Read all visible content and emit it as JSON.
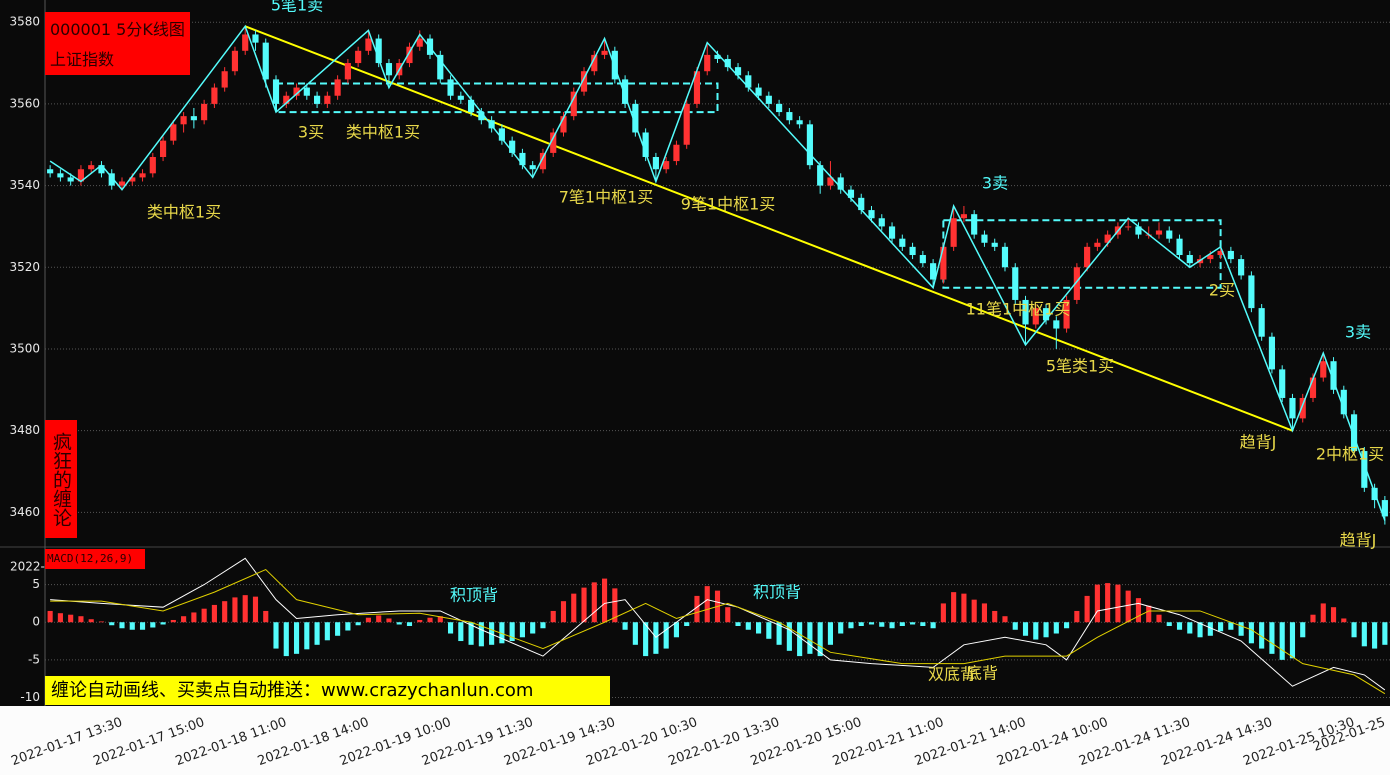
{
  "chart_data": [
    {
      "type": "candlestick",
      "title": "000001 5分K线图",
      "subtitle": "上证指数",
      "side_label": "疯狂的缠论",
      "categories": [
        null,
        null,
        null,
        null,
        null,
        null,
        null,
        "2022-01-17 13:30",
        null,
        null,
        null,
        null,
        null,
        null,
        null,
        "2022-01-17 15:00",
        null,
        null,
        null,
        null,
        null,
        null,
        null,
        "2022-01-18 11:00",
        null,
        null,
        null,
        null,
        null,
        null,
        null,
        "2022-01-18 14:00",
        null,
        null,
        null,
        null,
        null,
        null,
        null,
        "2022-01-19 10:00",
        null,
        null,
        null,
        null,
        null,
        null,
        null,
        "2022-01-19 11:30",
        null,
        null,
        null,
        null,
        null,
        null,
        null,
        "2022-01-19 14:30",
        null,
        null,
        null,
        null,
        null,
        null,
        null,
        "2022-01-20 10:30",
        null,
        null,
        null,
        null,
        null,
        null,
        null,
        "2022-01-20 13:30",
        null,
        null,
        null,
        null,
        null,
        null,
        null,
        "2022-01-20 15:00",
        null,
        null,
        null,
        null,
        null,
        null,
        null,
        "2022-01-21 11:00",
        null,
        null,
        null,
        null,
        null,
        null,
        null,
        "2022-01-21 14:00",
        null,
        null,
        null,
        null,
        null,
        null,
        null,
        "2022-01-24 10:00",
        null,
        null,
        null,
        null,
        null,
        null,
        null,
        "2022-01-24 11:30",
        null,
        null,
        null,
        null,
        null,
        null,
        null,
        "2022-01-24 14:30",
        null,
        null,
        null,
        null,
        null,
        null,
        null,
        "2022-01-25 10:30",
        null,
        null,
        "2022-01-25"
      ],
      "ohlc": [
        [
          3544,
          3545,
          3542,
          3543
        ],
        [
          3543,
          3544,
          3541,
          3542
        ],
        [
          3542,
          3543,
          3540,
          3541
        ],
        [
          3541,
          3545,
          3540,
          3544
        ],
        [
          3544,
          3546,
          3543,
          3545
        ],
        [
          3545,
          3546,
          3542,
          3543
        ],
        [
          3543,
          3544,
          3539,
          3540
        ],
        [
          3540,
          3542,
          3539,
          3541
        ],
        [
          3541,
          3543,
          3540,
          3542
        ],
        [
          3542,
          3544,
          3541,
          3543
        ],
        [
          3543,
          3548,
          3542,
          3547
        ],
        [
          3547,
          3552,
          3546,
          3551
        ],
        [
          3551,
          3556,
          3550,
          3555
        ],
        [
          3555,
          3558,
          3553,
          3557
        ],
        [
          3557,
          3559,
          3554,
          3556
        ],
        [
          3556,
          3561,
          3555,
          3560
        ],
        [
          3560,
          3565,
          3559,
          3564
        ],
        [
          3564,
          3569,
          3563,
          3568
        ],
        [
          3568,
          3574,
          3567,
          3573
        ],
        [
          3573,
          3579,
          3572,
          3577
        ],
        [
          3577,
          3578,
          3573,
          3575
        ],
        [
          3575,
          3576,
          3564,
          3566
        ],
        [
          3566,
          3567,
          3558,
          3560
        ],
        [
          3560,
          3563,
          3559,
          3562
        ],
        [
          3562,
          3565,
          3561,
          3564
        ],
        [
          3564,
          3565,
          3561,
          3562
        ],
        [
          3562,
          3563,
          3559,
          3560
        ],
        [
          3560,
          3563,
          3559,
          3562
        ],
        [
          3562,
          3567,
          3561,
          3566
        ],
        [
          3566,
          3571,
          3565,
          3570
        ],
        [
          3570,
          3574,
          3569,
          3573
        ],
        [
          3573,
          3578,
          3572,
          3576
        ],
        [
          3576,
          3577,
          3569,
          3570
        ],
        [
          3570,
          3571,
          3565,
          3567
        ],
        [
          3567,
          3571,
          3566,
          3570
        ],
        [
          3570,
          3575,
          3569,
          3574
        ],
        [
          3574,
          3578,
          3573,
          3576
        ],
        [
          3576,
          3577,
          3571,
          3572
        ],
        [
          3572,
          3573,
          3565,
          3566
        ],
        [
          3566,
          3567,
          3561,
          3562
        ],
        [
          3562,
          3563,
          3560,
          3561
        ],
        [
          3561,
          3562,
          3557,
          3558
        ],
        [
          3558,
          3559,
          3555,
          3556
        ],
        [
          3556,
          3557,
          3553,
          3554
        ],
        [
          3554,
          3555,
          3550,
          3551
        ],
        [
          3551,
          3552,
          3547,
          3548
        ],
        [
          3548,
          3549,
          3544,
          3545
        ],
        [
          3545,
          3546,
          3542,
          3544
        ],
        [
          3544,
          3549,
          3543,
          3548
        ],
        [
          3548,
          3554,
          3547,
          3553
        ],
        [
          3553,
          3558,
          3552,
          3557
        ],
        [
          3557,
          3564,
          3556,
          3563
        ],
        [
          3563,
          3569,
          3562,
          3568
        ],
        [
          3568,
          3573,
          3567,
          3572
        ],
        [
          3572,
          3576,
          3571,
          3573
        ],
        [
          3573,
          3574,
          3565,
          3566
        ],
        [
          3566,
          3567,
          3559,
          3560
        ],
        [
          3560,
          3561,
          3552,
          3553
        ],
        [
          3553,
          3554,
          3546,
          3547
        ],
        [
          3547,
          3548,
          3541,
          3544
        ],
        [
          3544,
          3547,
          3543,
          3546
        ],
        [
          3546,
          3551,
          3545,
          3550
        ],
        [
          3550,
          3561,
          3549,
          3560
        ],
        [
          3560,
          3569,
          3559,
          3568
        ],
        [
          3568,
          3575,
          3567,
          3572
        ],
        [
          3572,
          3573,
          3570,
          3571
        ],
        [
          3571,
          3572,
          3568,
          3569
        ],
        [
          3569,
          3570,
          3566,
          3567
        ],
        [
          3567,
          3568,
          3563,
          3564
        ],
        [
          3564,
          3565,
          3561,
          3562
        ],
        [
          3562,
          3563,
          3559,
          3560
        ],
        [
          3560,
          3561,
          3557,
          3558
        ],
        [
          3558,
          3559,
          3555,
          3556
        ],
        [
          3556,
          3557,
          3554,
          3555
        ],
        [
          3555,
          3556,
          3544,
          3545
        ],
        [
          3545,
          3546,
          3538,
          3540
        ],
        [
          3540,
          3546,
          3539,
          3542
        ],
        [
          3542,
          3543,
          3538,
          3539
        ],
        [
          3539,
          3540,
          3536,
          3537
        ],
        [
          3537,
          3538,
          3533,
          3534
        ],
        [
          3534,
          3535,
          3531,
          3532
        ],
        [
          3532,
          3533,
          3529,
          3530
        ],
        [
          3530,
          3531,
          3526,
          3527
        ],
        [
          3527,
          3528,
          3524,
          3525
        ],
        [
          3525,
          3526,
          3522,
          3523
        ],
        [
          3523,
          3524,
          3520,
          3521
        ],
        [
          3521,
          3522,
          3515,
          3517
        ],
        [
          3517,
          3526,
          3516,
          3525
        ],
        [
          3525,
          3535,
          3524,
          3532
        ],
        [
          3532,
          3535,
          3531,
          3533
        ],
        [
          3533,
          3534,
          3527,
          3528
        ],
        [
          3528,
          3529,
          3525,
          3526
        ],
        [
          3526,
          3527,
          3524,
          3525
        ],
        [
          3525,
          3526,
          3519,
          3520
        ],
        [
          3520,
          3521,
          3511,
          3512
        ],
        [
          3512,
          3513,
          3501,
          3506
        ],
        [
          3506,
          3511,
          3505,
          3510
        ],
        [
          3510,
          3511,
          3506,
          3507
        ],
        [
          3507,
          3508,
          3500,
          3505
        ],
        [
          3505,
          3513,
          3504,
          3512
        ],
        [
          3512,
          3521,
          3511,
          3520
        ],
        [
          3520,
          3526,
          3519,
          3525
        ],
        [
          3525,
          3527,
          3524,
          3526
        ],
        [
          3526,
          3529,
          3525,
          3528
        ],
        [
          3528,
          3531,
          3527,
          3530
        ],
        [
          3530,
          3532,
          3529,
          3530
        ],
        [
          3530,
          3531,
          3527,
          3528
        ],
        [
          3528,
          3530,
          3527,
          3528
        ],
        [
          3528,
          3531,
          3527,
          3529
        ],
        [
          3529,
          3530,
          3526,
          3527
        ],
        [
          3527,
          3528,
          3522,
          3523
        ],
        [
          3523,
          3524,
          3520,
          3521
        ],
        [
          3521,
          3523,
          3520,
          3522
        ],
        [
          3522,
          3524,
          3521,
          3523
        ],
        [
          3523,
          3525,
          3522,
          3524
        ],
        [
          3524,
          3525,
          3521,
          3522
        ],
        [
          3522,
          3523,
          3517,
          3518
        ],
        [
          3518,
          3519,
          3509,
          3510
        ],
        [
          3510,
          3511,
          3502,
          3503
        ],
        [
          3503,
          3504,
          3494,
          3495
        ],
        [
          3495,
          3496,
          3487,
          3488
        ],
        [
          3488,
          3489,
          3480,
          3483
        ],
        [
          3483,
          3489,
          3482,
          3488
        ],
        [
          3488,
          3494,
          3487,
          3493
        ],
        [
          3493,
          3499,
          3492,
          3497
        ],
        [
          3497,
          3498,
          3489,
          3490
        ],
        [
          3490,
          3491,
          3483,
          3484
        ],
        [
          3484,
          3485,
          3474,
          3475
        ],
        [
          3475,
          3476,
          3465,
          3466
        ],
        [
          3466,
          3467,
          3461,
          3463
        ],
        [
          3463,
          3464,
          3457,
          3459
        ]
      ],
      "up_color": "#ff3232",
      "down_color": "#54fcfc",
      "ylim": [
        3452,
        3582.5
      ],
      "yticks": [
        3460,
        3480,
        3500,
        3520,
        3540,
        3560,
        3580
      ],
      "grid": true,
      "bi": {
        "color": "#54fcfc",
        "x": [
          0,
          3,
          5,
          7,
          19,
          22,
          31,
          33,
          36,
          47,
          54,
          59,
          64,
          86,
          88,
          95,
          105,
          111,
          114,
          121,
          124,
          130
        ],
        "values": [
          3546,
          3541,
          3545,
          3539,
          3579,
          3558,
          3578,
          3564,
          3577,
          3542,
          3576,
          3541,
          3575,
          3515,
          3535,
          3501,
          3532,
          3520,
          3525,
          3480,
          3499,
          3458
        ]
      },
      "trend_line": {
        "color": "#ffff00",
        "x": [
          19,
          121
        ],
        "values": [
          3579,
          3480
        ]
      },
      "zones": [
        {
          "color": "#54fcfc",
          "x": [
            22,
            65
          ],
          "y": [
            3558,
            3565
          ]
        },
        {
          "color": "#54fcfc",
          "x": [
            87,
            114
          ],
          "y": [
            3515,
            3531.5
          ]
        }
      ],
      "annotations": [
        "5笔1卖",
        "3买",
        "类中枢1买",
        "类中枢1买",
        "7笔1中枢1买",
        "9笔1中枢1买",
        "3卖",
        "11笔1中枢1买",
        "2买",
        "5笔类1买",
        "3卖",
        "趋背J",
        "2中枢1买",
        "趋背J"
      ]
    },
    {
      "type": "macd",
      "title": "MACD(12,26,9)",
      "axis_fragment": "2022-",
      "banner": "缠论自动画线、买卖点自动推送：www.crazychanlun.com",
      "values": [
        1.5,
        1.2,
        1,
        0.8,
        0.4,
        0.1,
        -0.4,
        -0.8,
        -1,
        -1,
        -0.7,
        -0.3,
        0.3,
        0.8,
        1.3,
        1.8,
        2.3,
        2.8,
        3.3,
        3.6,
        3.4,
        1.5,
        -3.5,
        -4.5,
        -4.2,
        -3.6,
        -3,
        -2.4,
        -1.8,
        -1.1,
        -0.4,
        0.6,
        0.9,
        0.5,
        -0.3,
        -0.5,
        0.3,
        0.6,
        0.8,
        -1.5,
        -2.5,
        -3,
        -3.2,
        -3,
        -2.8,
        -2.5,
        -2,
        -1.5,
        -0.8,
        1.5,
        2.8,
        3.8,
        4.6,
        5.3,
        5.8,
        4.5,
        -1,
        -3,
        -4.5,
        -4.2,
        -3.5,
        -2,
        -0.5,
        3.5,
        4.8,
        4.2,
        2,
        -0.5,
        -1,
        -1.5,
        -2.2,
        -3,
        -3.8,
        -4.5,
        -4.2,
        -4.5,
        -3,
        -1.5,
        -0.8,
        -0.5,
        -0.3,
        -0.6,
        -0.8,
        -0.5,
        -0.3,
        -0.5,
        -0.8,
        2.5,
        4,
        3.8,
        3,
        2.5,
        1.5,
        0.8,
        -1,
        -1.8,
        -2.3,
        -2,
        -1.5,
        -0.8,
        1.5,
        3.5,
        5,
        5.2,
        5,
        4.2,
        3.2,
        2.2,
        1,
        -0.5,
        -1,
        -1.5,
        -2,
        -1.8,
        -1.2,
        -1,
        -1.8,
        -2.8,
        -3.5,
        -4.2,
        -5,
        -4.8,
        -2,
        1,
        2.5,
        2,
        0.5,
        -2,
        -3.2,
        -3.5,
        -3
      ],
      "up_color": "#ff3232",
      "down_color": "#54fcfc",
      "series": [
        {
          "color": "#ffffff",
          "x": [
            0,
            5,
            11,
            15,
            19,
            22,
            24,
            28,
            34,
            38,
            42,
            48,
            54,
            56,
            59,
            64,
            67,
            72,
            76,
            80,
            86,
            89,
            93,
            97,
            99,
            102,
            106,
            110,
            116,
            121,
            125,
            128,
            130
          ],
          "values": [
            3,
            2.5,
            2,
            5,
            8.5,
            3,
            0.5,
            1,
            1.5,
            1.5,
            -1,
            -4.5,
            2.5,
            3,
            -2,
            3,
            2,
            -1,
            -5,
            -5.5,
            -6,
            -3,
            -2,
            -3,
            -5,
            1.5,
            2.5,
            1,
            -2.5,
            -8.5,
            -6,
            -7,
            -9
          ]
        },
        {
          "color": "#e0d000",
          "x": [
            0,
            5,
            11,
            16,
            21,
            24,
            30,
            36,
            41,
            48,
            54,
            58,
            61,
            66,
            71,
            76,
            83,
            89,
            93,
            99,
            102,
            107,
            112,
            117,
            122,
            127,
            130
          ],
          "values": [
            2.8,
            2.8,
            1.5,
            4,
            7,
            3,
            1,
            1.2,
            0,
            -3.5,
            0,
            2.5,
            0.5,
            2.5,
            0,
            -4,
            -5.5,
            -5.5,
            -4.5,
            -4.5,
            -2,
            1.5,
            1.5,
            -1,
            -5.5,
            -7,
            -9.5
          ]
        }
      ],
      "ylim": [
        -11,
        9.6
      ],
      "yticks": [
        -10,
        -5,
        0,
        5
      ],
      "grid": true,
      "annotations": [
        "积顶背",
        "积顶背",
        "双底背",
        "底背"
      ]
    }
  ]
}
